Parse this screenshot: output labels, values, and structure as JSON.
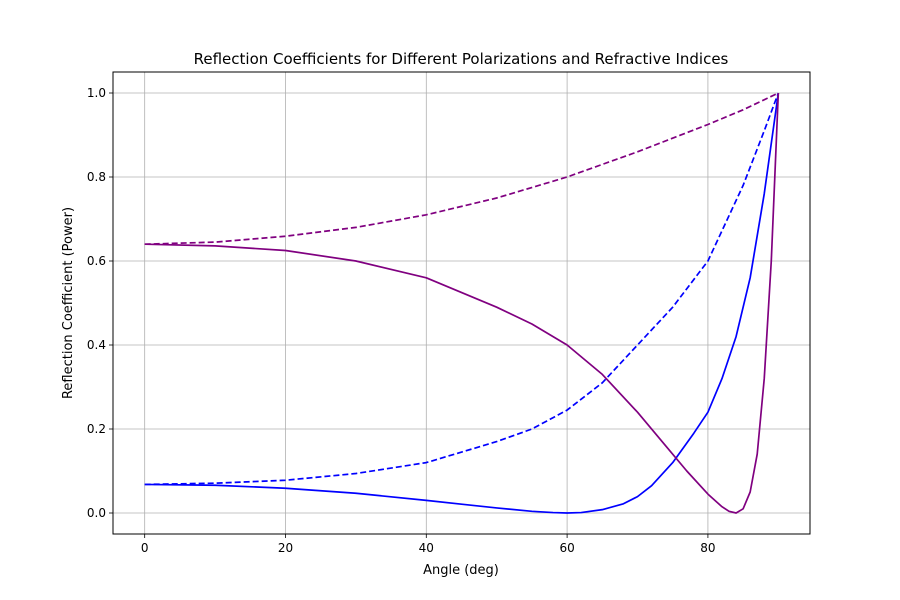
{
  "chart_data": {
    "type": "line",
    "title": "Reflection Coefficients for Different Polarizations and Refractive Indices",
    "xlabel": "Angle (deg)",
    "ylabel": "Reflection Coefficient (Power)",
    "xlim": [
      -4.5,
      94.5
    ],
    "ylim": [
      -0.05,
      1.05
    ],
    "x_ticks": [
      0,
      20,
      40,
      60,
      80
    ],
    "y_ticks": [
      0.0,
      0.2,
      0.4,
      0.6,
      0.8,
      1.0
    ],
    "grid": true,
    "x_tick_labels": [
      "0",
      "20",
      "40",
      "60",
      "80"
    ],
    "y_tick_labels": [
      "0.0",
      "0.2",
      "0.4",
      "0.6",
      "0.8",
      "1.0"
    ],
    "series": [
      {
        "color": "#0000ff",
        "dash": "solid",
        "x": [
          0,
          10,
          20,
          30,
          40,
          45,
          50,
          55,
          58,
          60,
          62,
          65,
          68,
          70,
          72,
          75,
          78,
          80,
          82,
          84,
          86,
          88,
          90
        ],
        "y": [
          0.068,
          0.066,
          0.059,
          0.047,
          0.03,
          0.021,
          0.012,
          0.004,
          0.001,
          0.0,
          0.001,
          0.008,
          0.022,
          0.039,
          0.065,
          0.12,
          0.19,
          0.24,
          0.32,
          0.42,
          0.56,
          0.76,
          1.0
        ]
      },
      {
        "color": "#0000ff",
        "dash": "dashed",
        "x": [
          0,
          10,
          20,
          30,
          40,
          50,
          55,
          60,
          65,
          70,
          75,
          80,
          85,
          88,
          90
        ],
        "y": [
          0.068,
          0.071,
          0.078,
          0.094,
          0.12,
          0.17,
          0.2,
          0.245,
          0.31,
          0.4,
          0.49,
          0.6,
          0.78,
          0.91,
          1.0
        ]
      },
      {
        "color": "#800080",
        "dash": "solid",
        "x": [
          0,
          10,
          20,
          30,
          40,
          50,
          55,
          60,
          65,
          70,
          74,
          77,
          80,
          82,
          83,
          84,
          85,
          86,
          87,
          88,
          89,
          90
        ],
        "y": [
          0.64,
          0.636,
          0.625,
          0.6,
          0.56,
          0.49,
          0.45,
          0.4,
          0.33,
          0.24,
          0.16,
          0.1,
          0.045,
          0.015,
          0.004,
          0.0,
          0.01,
          0.05,
          0.14,
          0.32,
          0.6,
          1.0
        ]
      },
      {
        "color": "#800080",
        "dash": "dashed",
        "x": [
          0,
          10,
          20,
          30,
          40,
          50,
          60,
          70,
          80,
          85,
          90
        ],
        "y": [
          0.64,
          0.645,
          0.659,
          0.68,
          0.71,
          0.75,
          0.8,
          0.86,
          0.925,
          0.96,
          1.0
        ]
      }
    ]
  }
}
